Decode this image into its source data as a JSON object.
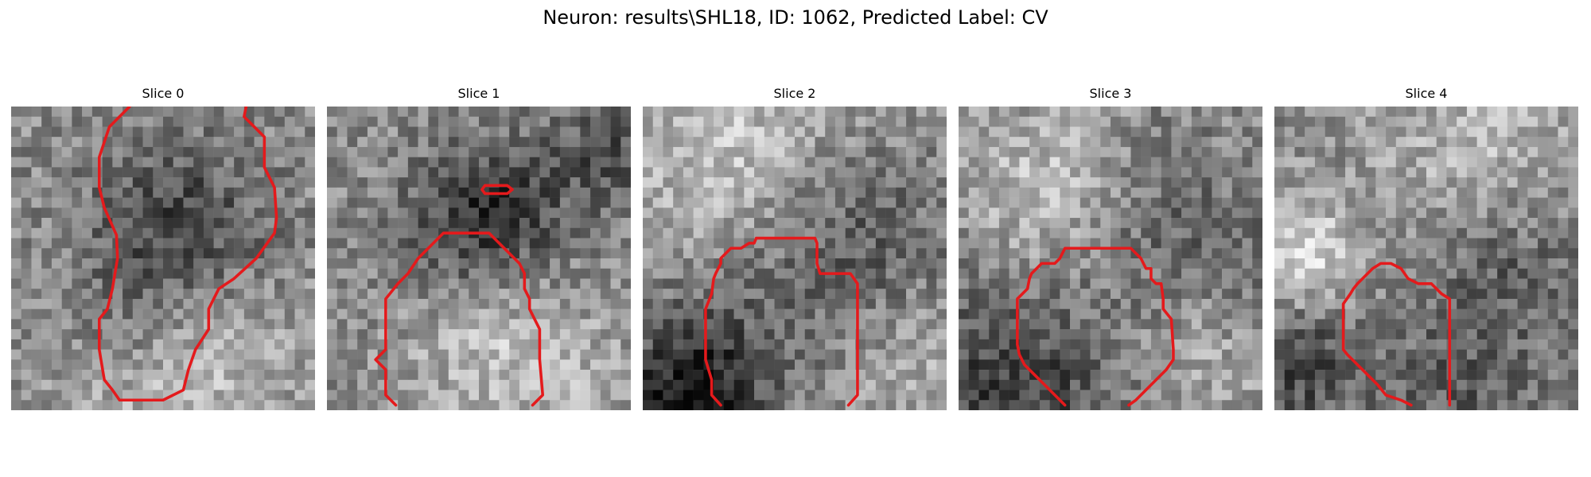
{
  "figure": {
    "title": "Neuron: results\\SHL18, ID: 1062, Predicted Label: CV"
  },
  "panels": [
    {
      "title": "Slice 0"
    },
    {
      "title": "Slice 1"
    },
    {
      "title": "Slice 2"
    },
    {
      "title": "Slice 3"
    },
    {
      "title": "Slice 4"
    }
  ],
  "colors": {
    "contour": "#e41a1c",
    "image_colormap": "gray"
  }
}
